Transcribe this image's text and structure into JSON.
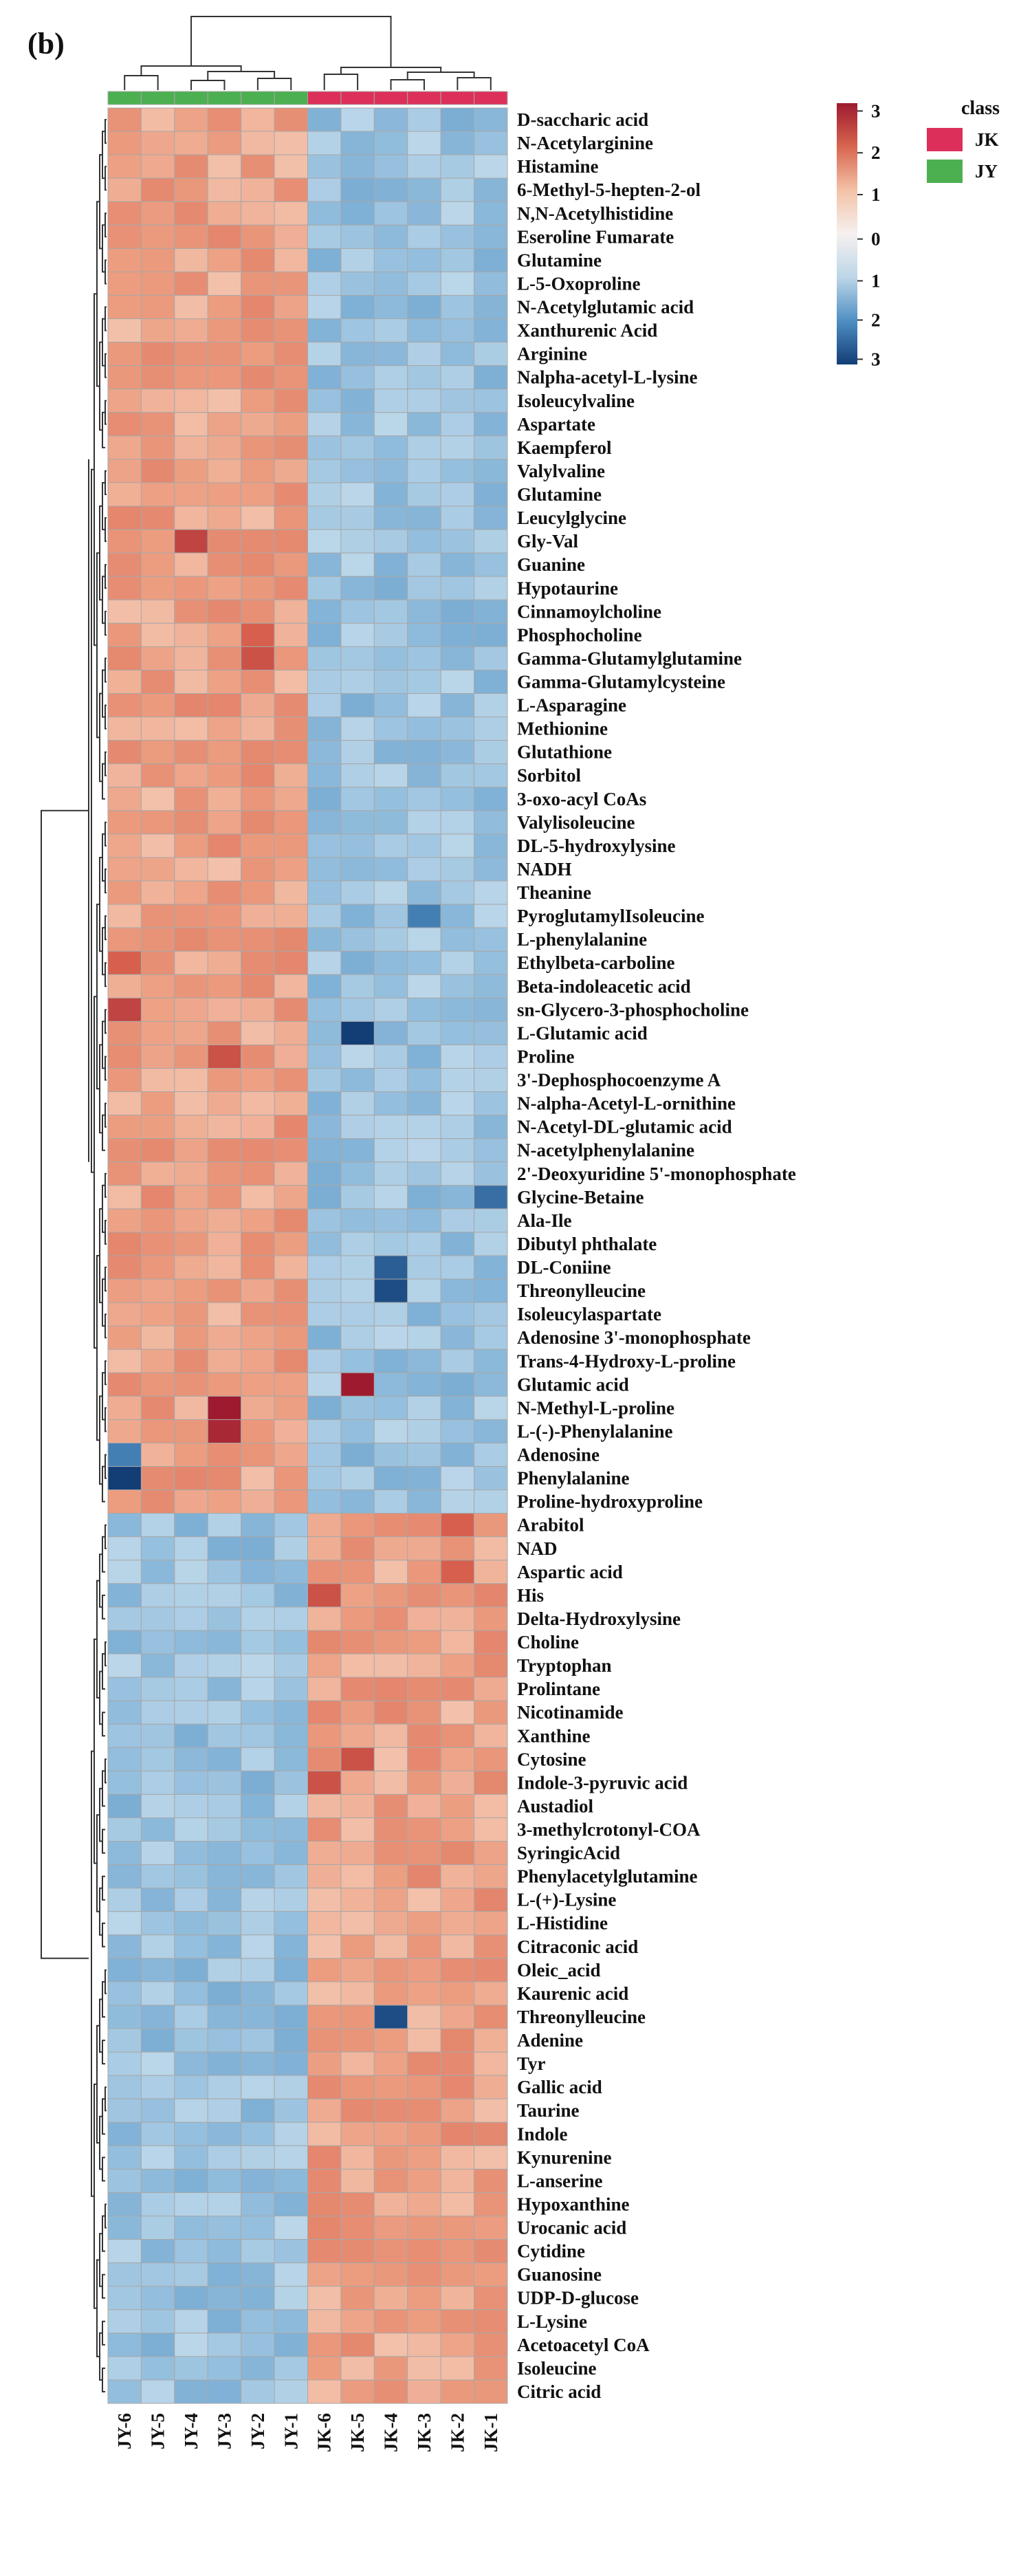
{
  "panel_label": "(b)",
  "chart_data": {
    "type": "heatmap",
    "title": "",
    "columns": [
      "JY-6",
      "JY-5",
      "JY-4",
      "JY-3",
      "JY-2",
      "JY-1",
      "JK-6",
      "JK-5",
      "JK-4",
      "JK-3",
      "JK-2",
      "JK-1"
    ],
    "column_classes": [
      "JY",
      "JY",
      "JY",
      "JY",
      "JY",
      "JY",
      "JK",
      "JK",
      "JK",
      "JK",
      "JK",
      "JK"
    ],
    "rows": [
      "D-saccharic acid",
      "N-Acetylarginine",
      "Histamine",
      "6-Methyl-5-hepten-2-ol",
      "N,N-Acetylhistidine",
      "Eseroline Fumarate",
      "Glutamine",
      "L-5-Oxoproline",
      "N-Acetylglutamic acid",
      "Xanthurenic Acid",
      "Arginine",
      "Nalpha-acetyl-L-lysine",
      "Isoleucylvaline",
      "Aspartate",
      "Kaempferol",
      "Valylvaline",
      "Glutamine",
      "Leucylglycine",
      "Gly-Val",
      "Guanine",
      "Hypotaurine",
      "Cinnamoylcholine",
      "Phosphocholine",
      "Gamma-Glutamylglutamine",
      "Gamma-Glutamylcysteine",
      "L-Asparagine",
      "Methionine",
      "Glutathione",
      "Sorbitol",
      "3-oxo-acyl CoAs",
      "Valylisoleucine",
      "DL-5-hydroxylysine",
      "NADH",
      "Theanine",
      "PyroglutamylIsoleucine",
      "L-phenylalanine",
      "Ethylbeta-carboline",
      "Beta-indoleacetic acid",
      "sn-Glycero-3-phosphocholine",
      "L-Glutamic acid",
      "Proline",
      "3'-Dephosphocoenzyme A",
      "N-alpha-Acetyl-L-ornithine",
      "N-Acetyl-DL-glutamic acid",
      "N-acetylphenylalanine",
      "2'-Deoxyuridine 5'-monophosphate",
      "Glycine-Betaine",
      "Ala-Ile",
      "Dibutyl phthalate",
      "DL-Coniine",
      "Threonylleucine",
      "Isoleucylaspartate",
      "Adenosine 3'-monophosphate",
      "Trans-4-Hydroxy-L-proline",
      "Glutamic acid",
      "N-Methyl-L-proline",
      "L-(-)-Phenylalanine",
      "Adenosine",
      "Phenylalanine",
      "Proline-hydroxyproline",
      "Arabitol",
      "NAD",
      "Aspartic acid",
      "His",
      "Delta-Hydroxylysine",
      "Choline",
      "Tryptophan",
      "Prolintane",
      "Nicotinamide",
      "Xanthine",
      "Cytosine",
      "Indole-3-pyruvic acid",
      "Austadiol",
      "3-methylcrotonyl-COA",
      "SyringicAcid",
      "Phenylacetylglutamine",
      "L-(+)-Lysine",
      "L-Histidine",
      "Citraconic acid",
      "Oleic_acid",
      "Kaurenic acid",
      "Threonylleucine",
      "Adenine",
      "Tyr",
      "Gallic acid",
      "Taurine",
      "Indole",
      "Kynurenine",
      "L-anserine",
      "Hypoxanthine",
      "Urocanic acid",
      "Cytidine",
      "Guanosine",
      "UDP-D-glucose",
      "L-Lysine",
      "Acetoacetyl CoA",
      "Isoleucine",
      "Citric acid"
    ],
    "upregulated_in_JY_rows": 60,
    "upregulated_in_JK_rows": 38,
    "typical_value_higher_group": 1.0,
    "typical_value_lower_group": -1.0,
    "value_range": [
      -3,
      3
    ],
    "notable_cells": [
      {
        "row": "L-Glutamic acid",
        "column": "JK-5",
        "value": -3.0
      },
      {
        "row": "Glutamic acid",
        "column": "JK-5",
        "value": 3.0
      },
      {
        "row": "N-Methyl-L-proline",
        "column": "JY-3",
        "value": 3.0
      },
      {
        "row": "L-(-)-Phenylalanine",
        "column": "JY-3",
        "value": 2.8
      },
      {
        "row": "Phenylalanine",
        "column": "JY-6",
        "value": -3.0
      },
      {
        "row": "Adenosine",
        "column": "JY-6",
        "value": -2.2
      },
      {
        "row": "DL-Coniine",
        "column": "JK-4",
        "value": -2.6
      },
      {
        "row": "Threonylleucine",
        "column": "JK-4",
        "value": -2.8
      },
      {
        "row": "Gly-Val",
        "column": "JY-4",
        "value": 2.4
      },
      {
        "row": "sn-Glycero-3-phosphocholine",
        "column": "JY-6",
        "value": 2.4
      },
      {
        "row": "Ethylbeta-carboline",
        "column": "JY-6",
        "value": 2.0
      },
      {
        "row": "Phosphocholine",
        "column": "JY-2",
        "value": 2.0
      },
      {
        "row": "Gamma-Glutamylglutamine",
        "column": "JY-2",
        "value": 2.2
      },
      {
        "row": "Proline",
        "column": "JY-3",
        "value": 2.2
      },
      {
        "row": "Glycine-Betaine",
        "column": "JK-1",
        "value": -2.4
      },
      {
        "row": "PyroglutamylIsoleucine",
        "column": "JK-3",
        "value": -2.2
      },
      {
        "row": "Cytosine",
        "column": "JK-5",
        "value": 2.2
      },
      {
        "row": "Indole-3-pyruvic acid",
        "column": "JK-6",
        "value": 2.2
      },
      {
        "row": "His",
        "column": "JK-6",
        "value": 2.2
      },
      {
        "row": "Arabitol",
        "column": "JK-2",
        "value": 2.0
      },
      {
        "row": "Aspartic acid",
        "column": "JK-2",
        "value": 2.0
      }
    ],
    "colorbar": {
      "ticks_top": [
        "3",
        "2",
        "1",
        "0"
      ],
      "ticks_bottom": [
        "1",
        "2",
        "3"
      ],
      "colors": [
        "#9e1a2f",
        "#d8664f",
        "#f3c2a7",
        "#f6f0ef",
        "#bcd6e8",
        "#4f8fc3",
        "#123d75"
      ]
    },
    "legend": {
      "title": "class",
      "entries": [
        {
          "label": "JK",
          "color": "#dc2f59"
        },
        {
          "label": "JY",
          "color": "#4caf50"
        }
      ]
    },
    "row_dendrogram": "two main clusters: rows 1-60 (higher in JY) and rows 61-98 (higher in JK)",
    "column_dendrogram": "two main clusters: JY samples and JK samples"
  }
}
